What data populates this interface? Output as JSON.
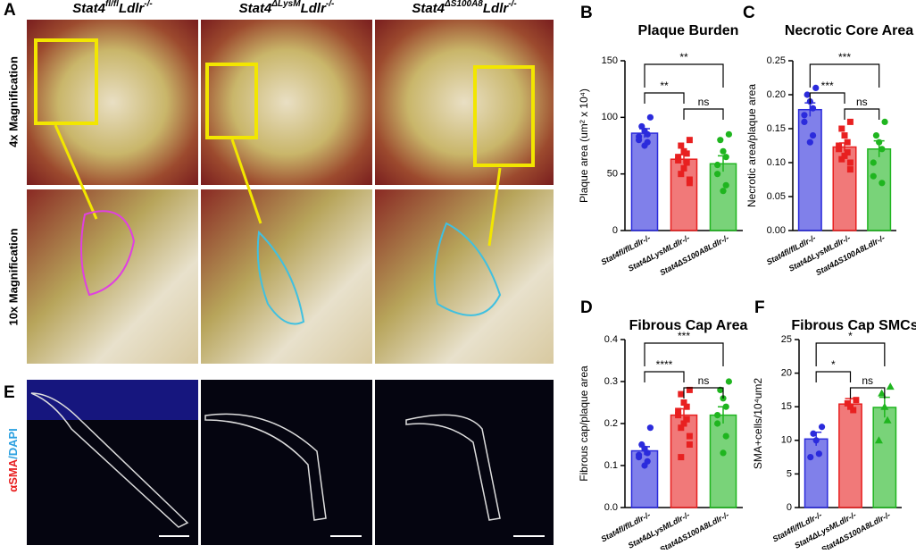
{
  "images": {
    "labels": [
      "A",
      "E"
    ],
    "columns": [
      {
        "gene": "Stat4",
        "allele": "fl/fl",
        "background": "Ldlr",
        "background_allele": "-/-"
      },
      {
        "gene": "Stat4",
        "allele": "ΔLysM",
        "background": "Ldlr",
        "background_allele": "-/-"
      },
      {
        "gene": "Stat4",
        "allele": "ΔS100A8",
        "background": "Ldlr",
        "background_allele": "-/-"
      }
    ],
    "rows": [
      "4x Magnification",
      "10x Magnification"
    ],
    "stain": {
      "marker": "αSMA",
      "separator": "/",
      "counterstain": "DAPI"
    }
  },
  "chart_data": [
    {
      "type": "bar",
      "label": "B",
      "title": "Plaque Burden",
      "y_label": "Plaque area (um² x 10⁴)",
      "categories": [
        "Stat4fl/flLdlr-/-",
        "Stat4ΔLysMLdlr-/-",
        "Stat4ΔS100A8Ldlr-/-"
      ],
      "values": [
        86,
        63,
        59
      ],
      "errors": [
        4,
        4,
        7
      ],
      "points": [
        [
          100,
          92,
          88,
          85,
          83,
          80,
          78,
          75
        ],
        [
          80,
          75,
          70,
          68,
          65,
          62,
          60,
          55,
          50,
          45,
          42
        ],
        [
          85,
          80,
          70,
          65,
          58,
          50,
          40,
          35
        ]
      ],
      "colors": [
        "#2b2bdc",
        "#e82020",
        "#1fb51f"
      ],
      "markers": [
        "circle",
        "square",
        "circle"
      ],
      "ylim": [
        0,
        150
      ],
      "yticks": [
        0,
        50,
        100,
        150
      ],
      "comparisons": [
        {
          "groups": [
            0,
            2
          ],
          "label": "**"
        },
        {
          "groups": [
            0,
            1
          ],
          "label": "**"
        },
        {
          "groups": [
            1,
            2
          ],
          "label": "ns"
        }
      ]
    },
    {
      "type": "bar",
      "label": "C",
      "title": "Necrotic Core Area",
      "y_label": "Necrotic area/plaque area",
      "categories": [
        "Stat4fl/flLdlr-/-",
        "Stat4ΔLysMLdlr-/-",
        "Stat4ΔS100A8Ldlr-/-"
      ],
      "values": [
        0.178,
        0.123,
        0.12
      ],
      "errors": [
        0.01,
        0.006,
        0.012
      ],
      "points": [
        [
          0.21,
          0.2,
          0.19,
          0.18,
          0.17,
          0.16,
          0.14,
          0.13
        ],
        [
          0.16,
          0.15,
          0.14,
          0.13,
          0.125,
          0.12,
          0.115,
          0.11,
          0.105,
          0.1,
          0.09
        ],
        [
          0.16,
          0.14,
          0.13,
          0.12,
          0.1,
          0.08,
          0.07
        ]
      ],
      "colors": [
        "#2b2bdc",
        "#e82020",
        "#1fb51f"
      ],
      "markers": [
        "circle",
        "square",
        "circle"
      ],
      "ylim": [
        0,
        0.25
      ],
      "yticks": [
        {
          "value": 0,
          "label": "0.00"
        },
        {
          "value": 0.05,
          "label": "0.05"
        },
        {
          "value": 0.1,
          "label": "0.10"
        },
        {
          "value": 0.15,
          "label": "0.15"
        },
        {
          "value": 0.2,
          "label": "0.20"
        },
        {
          "value": 0.25,
          "label": "0.25"
        }
      ],
      "comparisons": [
        {
          "groups": [
            0,
            2
          ],
          "label": "***"
        },
        {
          "groups": [
            0,
            1
          ],
          "label": "***"
        },
        {
          "groups": [
            1,
            2
          ],
          "label": "ns"
        }
      ]
    },
    {
      "type": "bar",
      "label": "D",
      "title": "Fibrous Cap Area",
      "y_label": "Fibrous cap/plaque area",
      "categories": [
        "Stat4fl/flLdlr-/-",
        "Stat4ΔLysMLdlr-/-",
        "Stat4ΔS100A8Ldlr-/-"
      ],
      "values": [
        0.135,
        0.22,
        0.22
      ],
      "errors": [
        0.01,
        0.015,
        0.02
      ],
      "points": [
        [
          0.19,
          0.15,
          0.14,
          0.13,
          0.125,
          0.12,
          0.11,
          0.1
        ],
        [
          0.28,
          0.27,
          0.25,
          0.24,
          0.23,
          0.22,
          0.21,
          0.2,
          0.19,
          0.17,
          0.15,
          0.12
        ],
        [
          0.3,
          0.28,
          0.26,
          0.24,
          0.22,
          0.2,
          0.17,
          0.13
        ]
      ],
      "colors": [
        "#2b2bdc",
        "#e82020",
        "#1fb51f"
      ],
      "markers": [
        "circle",
        "square",
        "circle"
      ],
      "ylim": [
        0,
        0.4
      ],
      "yticks": [
        {
          "value": 0,
          "label": "0.0"
        },
        0.1,
        0.2,
        0.3,
        0.4
      ],
      "comparisons": [
        {
          "groups": [
            0,
            2
          ],
          "label": "***"
        },
        {
          "groups": [
            0,
            1
          ],
          "label": "****"
        },
        {
          "groups": [
            1,
            2
          ],
          "label": "ns"
        }
      ]
    },
    {
      "type": "bar",
      "label": "F",
      "title": "Fibrous Cap SMCs",
      "y_label": "SMA+cells/10⁴um2",
      "categories": [
        "Stat4fl/flLdlr-/-",
        "Stat4ΔLysMLdlr-/-",
        "Stat4ΔS100A8Ldlr-/-"
      ],
      "values": [
        10.2,
        15.4,
        14.9
      ],
      "errors": [
        1,
        0.8,
        1.5
      ],
      "points": [
        [
          12,
          11,
          10,
          8,
          7.5
        ],
        [
          16,
          15.5,
          15,
          14.5
        ],
        [
          18,
          17,
          15,
          13,
          10
        ]
      ],
      "colors": [
        "#2b2bdc",
        "#e82020",
        "#1fb51f"
      ],
      "markers": [
        "circle",
        "square",
        "triangle"
      ],
      "ylim": [
        0,
        25
      ],
      "yticks": [
        0,
        5,
        10,
        15,
        20,
        25
      ],
      "comparisons": [
        {
          "groups": [
            0,
            2
          ],
          "label": "*"
        },
        {
          "groups": [
            0,
            1
          ],
          "label": "*"
        },
        {
          "groups": [
            1,
            2
          ],
          "label": "ns"
        }
      ]
    }
  ]
}
